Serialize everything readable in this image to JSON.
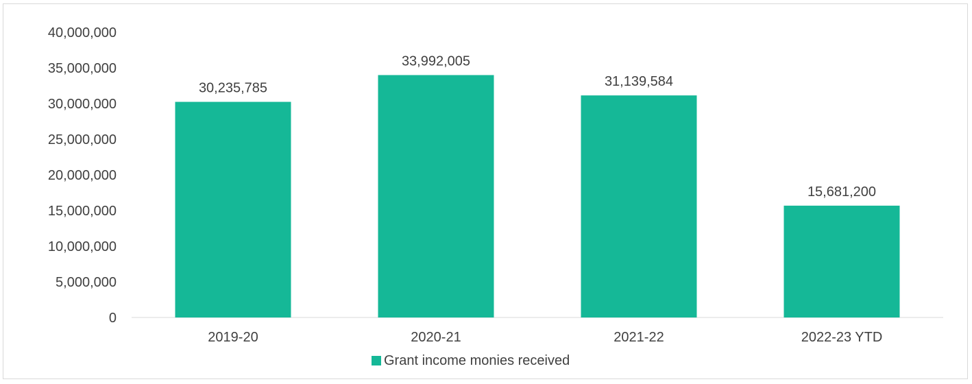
{
  "chart_data": {
    "type": "bar",
    "categories": [
      "2019-20",
      "2020-21",
      "2021-22",
      "2022-23 YTD"
    ],
    "series": [
      {
        "name": "Grant income monies received",
        "values": [
          30235785,
          33992005,
          31139584,
          15681200
        ],
        "labels": [
          "30,235,785",
          "33,992,005",
          "31,139,584",
          "15,681,200"
        ],
        "color": "#15b897"
      }
    ],
    "y_ticks": [
      "0",
      "5,000,000",
      "10,000,000",
      "15,000,000",
      "20,000,000",
      "25,000,000",
      "30,000,000",
      "35,000,000",
      "40,000,000"
    ],
    "ylim": [
      0,
      40000000
    ],
    "grid": false,
    "legend_position": "bottom",
    "title": "",
    "xlabel": "",
    "ylabel": ""
  }
}
